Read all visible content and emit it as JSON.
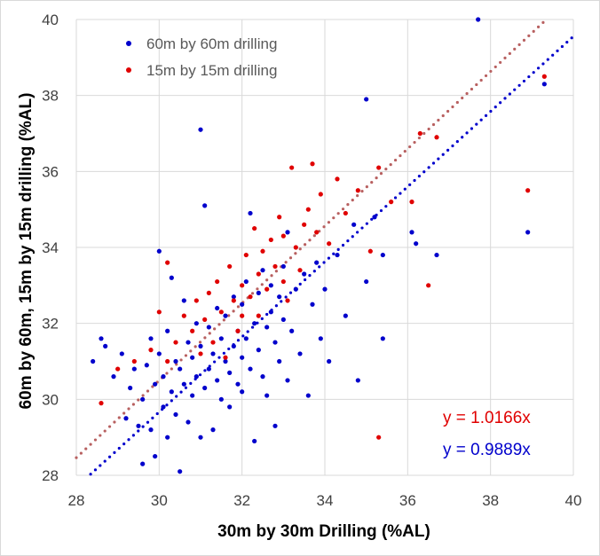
{
  "chart_data": {
    "type": "scatter",
    "title": "",
    "xlabel": "30m by 30m Drilling (%AL)",
    "ylabel": "60m by 60m, 15m by 15m drilling (%AL)",
    "xlim": [
      28,
      40
    ],
    "ylim": [
      28,
      40
    ],
    "x_ticks": [
      "28",
      "30",
      "32",
      "34",
      "36",
      "38",
      "40"
    ],
    "y_ticks": [
      "28",
      "30",
      "32",
      "34",
      "36",
      "38",
      "40"
    ],
    "grid": "vertical and horizontal major gridlines",
    "legend_position": "top-left",
    "colors": {
      "blue": "#0000cc",
      "red": "#e00000",
      "trend_red": "#b86060",
      "trend_blue": "#0000cc"
    },
    "series": [
      {
        "name": "60m by 60m drilling",
        "color": "#0000cc",
        "slope": 0.9889,
        "points": [
          [
            28.4,
            31.0
          ],
          [
            28.6,
            31.6
          ],
          [
            28.7,
            31.4
          ],
          [
            28.9,
            30.6
          ],
          [
            29.1,
            31.2
          ],
          [
            29.2,
            29.5
          ],
          [
            29.3,
            30.3
          ],
          [
            29.4,
            30.8
          ],
          [
            29.5,
            29.3
          ],
          [
            29.6,
            28.3
          ],
          [
            29.6,
            30.0
          ],
          [
            29.7,
            30.9
          ],
          [
            29.8,
            31.6
          ],
          [
            29.8,
            29.2
          ],
          [
            29.9,
            30.4
          ],
          [
            29.9,
            28.5
          ],
          [
            30.0,
            33.9
          ],
          [
            30.0,
            31.2
          ],
          [
            30.1,
            29.8
          ],
          [
            30.1,
            30.6
          ],
          [
            30.2,
            31.8
          ],
          [
            30.2,
            29.0
          ],
          [
            30.3,
            30.2
          ],
          [
            30.3,
            33.2
          ],
          [
            30.4,
            31.0
          ],
          [
            30.4,
            29.6
          ],
          [
            30.5,
            30.8
          ],
          [
            30.5,
            28.1
          ],
          [
            30.6,
            30.4
          ],
          [
            30.6,
            32.6
          ],
          [
            30.7,
            31.5
          ],
          [
            30.7,
            29.4
          ],
          [
            30.8,
            30.1
          ],
          [
            30.8,
            31.1
          ],
          [
            30.9,
            30.6
          ],
          [
            30.9,
            32.0
          ],
          [
            31.0,
            37.1
          ],
          [
            31.0,
            29.0
          ],
          [
            31.0,
            31.4
          ],
          [
            31.1,
            30.3
          ],
          [
            31.1,
            35.1
          ],
          [
            31.2,
            31.9
          ],
          [
            31.2,
            30.8
          ],
          [
            31.3,
            29.2
          ],
          [
            31.3,
            31.2
          ],
          [
            31.4,
            30.5
          ],
          [
            31.4,
            32.4
          ],
          [
            31.5,
            31.6
          ],
          [
            31.5,
            30.0
          ],
          [
            31.6,
            31.0
          ],
          [
            31.6,
            32.2
          ],
          [
            31.7,
            30.7
          ],
          [
            31.7,
            29.8
          ],
          [
            31.8,
            31.4
          ],
          [
            31.8,
            32.7
          ],
          [
            31.9,
            30.4
          ],
          [
            31.9,
            31.8
          ],
          [
            32.0,
            32.5
          ],
          [
            32.0,
            31.1
          ],
          [
            32.0,
            30.2
          ],
          [
            32.1,
            33.1
          ],
          [
            32.1,
            31.6
          ],
          [
            32.2,
            34.9
          ],
          [
            32.2,
            30.8
          ],
          [
            32.3,
            32.0
          ],
          [
            32.3,
            28.9
          ],
          [
            32.4,
            31.3
          ],
          [
            32.4,
            32.8
          ],
          [
            32.5,
            30.6
          ],
          [
            32.5,
            33.4
          ],
          [
            32.6,
            31.9
          ],
          [
            32.6,
            30.1
          ],
          [
            32.7,
            32.3
          ],
          [
            32.7,
            33.0
          ],
          [
            32.8,
            31.5
          ],
          [
            32.8,
            29.3
          ],
          [
            32.9,
            32.7
          ],
          [
            32.9,
            31.0
          ],
          [
            33.0,
            33.5
          ],
          [
            33.0,
            32.1
          ],
          [
            33.1,
            30.5
          ],
          [
            33.1,
            34.4
          ],
          [
            33.2,
            31.8
          ],
          [
            33.3,
            32.9
          ],
          [
            33.4,
            31.2
          ],
          [
            33.5,
            33.3
          ],
          [
            33.6,
            30.1
          ],
          [
            33.7,
            32.5
          ],
          [
            33.8,
            33.6
          ],
          [
            33.9,
            31.6
          ],
          [
            34.0,
            32.9
          ],
          [
            34.1,
            31.0
          ],
          [
            34.3,
            33.8
          ],
          [
            34.5,
            32.2
          ],
          [
            34.7,
            34.6
          ],
          [
            34.8,
            30.5
          ],
          [
            35.0,
            37.9
          ],
          [
            35.0,
            33.1
          ],
          [
            35.2,
            34.8
          ],
          [
            35.4,
            31.6
          ],
          [
            35.4,
            33.8
          ],
          [
            36.1,
            34.4
          ],
          [
            36.2,
            34.1
          ],
          [
            36.7,
            33.8
          ],
          [
            37.7,
            40.0
          ],
          [
            38.9,
            34.4
          ],
          [
            39.3,
            38.3
          ]
        ]
      },
      {
        "name": "15m by 15m drilling",
        "color": "#e00000",
        "slope": 1.0166,
        "points": [
          [
            28.6,
            29.9
          ],
          [
            29.0,
            30.8
          ],
          [
            29.4,
            31.0
          ],
          [
            29.8,
            31.3
          ],
          [
            30.0,
            32.3
          ],
          [
            30.2,
            31.0
          ],
          [
            30.2,
            33.6
          ],
          [
            30.4,
            31.5
          ],
          [
            30.6,
            32.2
          ],
          [
            30.8,
            31.8
          ],
          [
            30.9,
            32.6
          ],
          [
            31.0,
            31.2
          ],
          [
            31.1,
            32.1
          ],
          [
            31.2,
            32.8
          ],
          [
            31.3,
            31.5
          ],
          [
            31.4,
            33.1
          ],
          [
            31.5,
            32.3
          ],
          [
            31.6,
            31.1
          ],
          [
            31.7,
            33.5
          ],
          [
            31.8,
            32.6
          ],
          [
            31.9,
            31.8
          ],
          [
            32.0,
            33.0
          ],
          [
            32.0,
            32.2
          ],
          [
            32.1,
            33.8
          ],
          [
            32.2,
            32.7
          ],
          [
            32.3,
            34.5
          ],
          [
            32.4,
            33.3
          ],
          [
            32.4,
            32.2
          ],
          [
            32.5,
            33.9
          ],
          [
            32.6,
            32.9
          ],
          [
            32.7,
            34.2
          ],
          [
            32.8,
            33.5
          ],
          [
            32.9,
            34.8
          ],
          [
            33.0,
            33.1
          ],
          [
            33.0,
            34.3
          ],
          [
            33.1,
            32.6
          ],
          [
            33.2,
            36.1
          ],
          [
            33.3,
            34.0
          ],
          [
            33.4,
            33.4
          ],
          [
            33.5,
            34.6
          ],
          [
            33.6,
            35.0
          ],
          [
            33.7,
            36.2
          ],
          [
            33.8,
            34.4
          ],
          [
            33.9,
            35.4
          ],
          [
            34.1,
            34.1
          ],
          [
            34.3,
            35.8
          ],
          [
            34.5,
            34.9
          ],
          [
            34.8,
            35.5
          ],
          [
            35.1,
            33.9
          ],
          [
            35.3,
            36.1
          ],
          [
            35.3,
            29.0
          ],
          [
            35.6,
            35.2
          ],
          [
            36.1,
            35.2
          ],
          [
            36.3,
            37.0
          ],
          [
            36.5,
            33.0
          ],
          [
            36.7,
            36.9
          ],
          [
            38.9,
            35.5
          ],
          [
            39.3,
            38.5
          ]
        ]
      }
    ],
    "trendlines": [
      {
        "series": "15m by 15m drilling",
        "equation": "y = 1.0166x",
        "color": "#e00000",
        "slope": 1.0166
      },
      {
        "series": "60m by 60m drilling",
        "equation": "y = 0.9889x",
        "color": "#0000cc",
        "slope": 0.9889
      }
    ]
  }
}
